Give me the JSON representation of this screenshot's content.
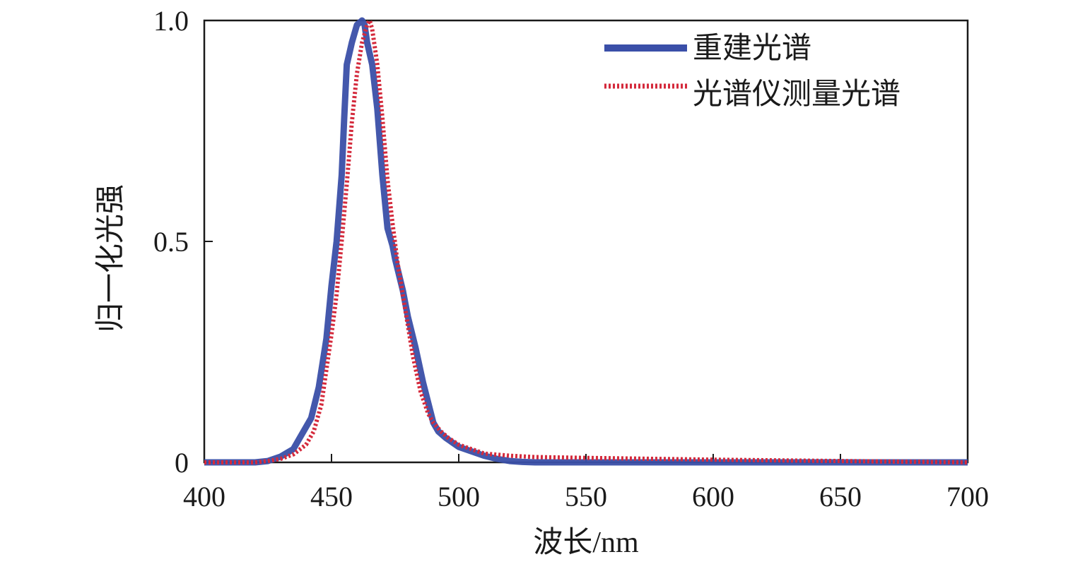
{
  "chart_data": {
    "type": "line",
    "title": "",
    "xlabel": "波长/nm",
    "ylabel": "归一化光强",
    "xlim": [
      400,
      700
    ],
    "ylim": [
      0,
      1.0
    ],
    "xticks": [
      400,
      450,
      500,
      550,
      600,
      650,
      700
    ],
    "xtick_labels": [
      "400",
      "450",
      "500",
      "550",
      "600",
      "650",
      "700"
    ],
    "yticks": [
      0,
      0.5,
      1.0
    ],
    "ytick_labels": [
      "0",
      "0.5",
      "1.0"
    ],
    "grid": false,
    "legend_position": "top-right",
    "series": [
      {
        "name": "重建光谱",
        "color": "#3a4fa8",
        "style": "solid",
        "x": [
          400,
          410,
          420,
          425,
          430,
          435,
          438,
          440,
          442,
          445,
          448,
          450,
          452,
          454,
          455,
          456,
          458,
          460,
          462,
          463,
          464,
          466,
          468,
          470,
          472,
          474,
          475,
          478,
          480,
          483,
          486,
          490,
          492,
          495,
          500,
          505,
          510,
          515,
          520,
          525,
          530,
          550,
          600,
          650,
          700
        ],
        "values": [
          0.0,
          0.0,
          0.0,
          0.003,
          0.013,
          0.03,
          0.06,
          0.08,
          0.1,
          0.17,
          0.28,
          0.4,
          0.5,
          0.65,
          0.78,
          0.9,
          0.95,
          0.99,
          1.0,
          0.99,
          0.95,
          0.9,
          0.8,
          0.65,
          0.53,
          0.49,
          0.46,
          0.39,
          0.33,
          0.26,
          0.18,
          0.09,
          0.07,
          0.055,
          0.035,
          0.025,
          0.015,
          0.008,
          0.003,
          0.001,
          0.0,
          0.0,
          0.0,
          0.0,
          0.0
        ]
      },
      {
        "name": "光谱仪测量光谱",
        "color": "#d42a3c",
        "style": "dotted",
        "x": [
          400,
          410,
          420,
          425,
          430,
          435,
          440,
          443,
          446,
          450,
          452,
          454,
          456,
          458,
          460,
          462,
          464,
          465,
          466,
          468,
          470,
          472,
          474,
          476,
          478,
          480,
          482,
          485,
          488,
          490,
          493,
          496,
          500,
          505,
          510,
          520,
          530,
          550,
          600,
          650,
          700
        ],
        "values": [
          0.0,
          0.0,
          0.0,
          0.003,
          0.008,
          0.018,
          0.04,
          0.07,
          0.13,
          0.29,
          0.38,
          0.5,
          0.63,
          0.77,
          0.88,
          0.95,
          0.99,
          1.0,
          0.98,
          0.9,
          0.78,
          0.64,
          0.54,
          0.45,
          0.38,
          0.31,
          0.24,
          0.16,
          0.11,
          0.09,
          0.07,
          0.055,
          0.04,
          0.03,
          0.02,
          0.015,
          0.012,
          0.01,
          0.006,
          0.003,
          0.0
        ]
      }
    ]
  }
}
